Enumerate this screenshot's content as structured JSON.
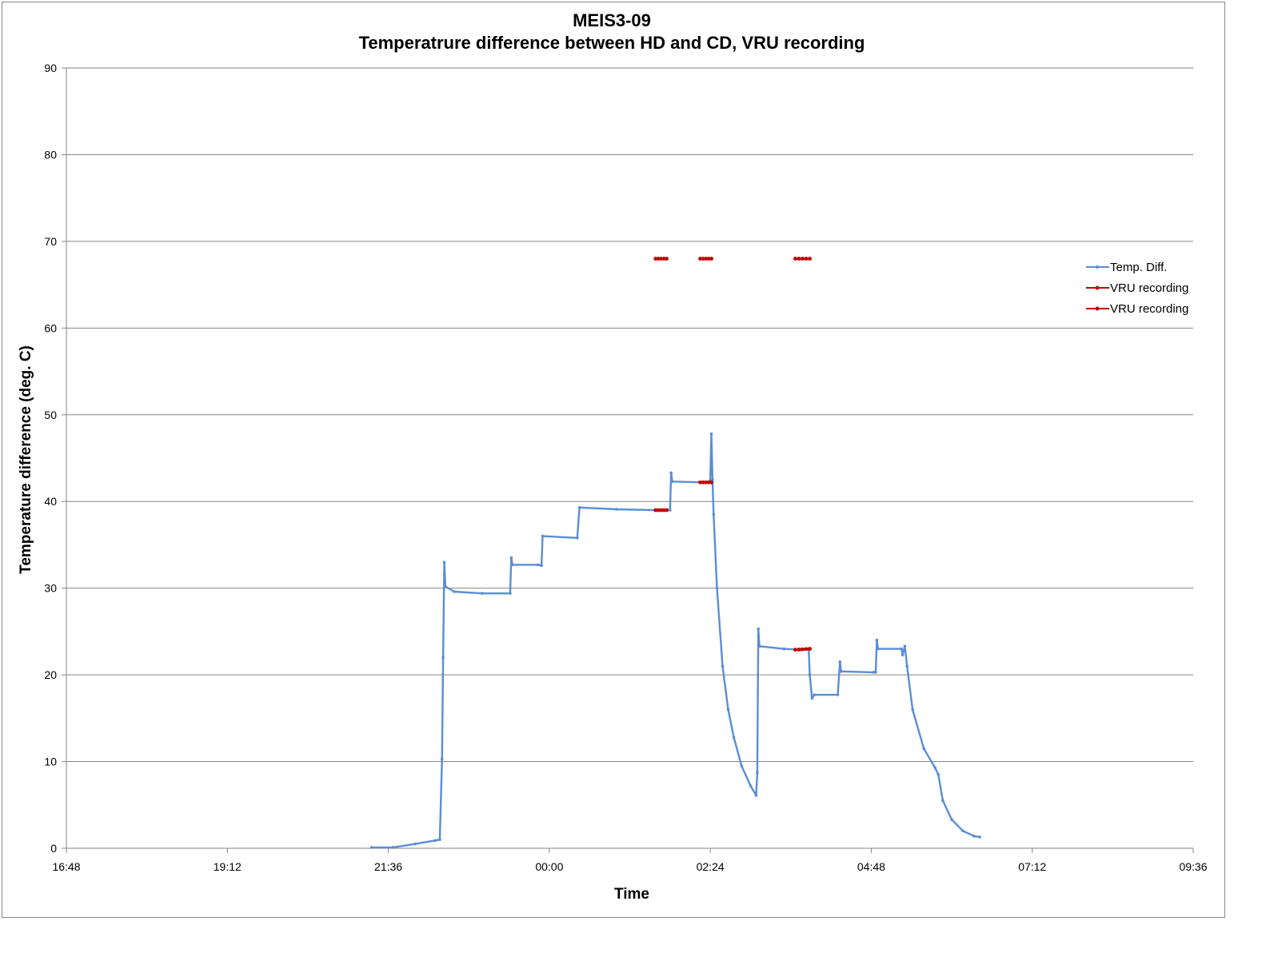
{
  "colors": {
    "temp": "#5B8DD6",
    "vru": "#C00000",
    "grid": "#868686",
    "axis": "#868686"
  },
  "chart_data": {
    "type": "line",
    "title": "MEIS3-09",
    "subtitle": "Temperatrure difference between HD and CD, VRU recording",
    "xlabel": "Time",
    "ylabel": "Temperature difference (deg. C)",
    "xlim": [
      "16:48",
      "09:36"
    ],
    "ylim": [
      0,
      90
    ],
    "x_tick_labels": [
      "16:48",
      "19:12",
      "21:36",
      "00:00",
      "02:24",
      "04:48",
      "07:12",
      "09:36"
    ],
    "y_tick_labels": [
      "0",
      "10",
      "20",
      "30",
      "40",
      "50",
      "60",
      "70",
      "80",
      "90"
    ],
    "grid": true,
    "legend_position": "right",
    "legend_entries": [
      "Temp. Diff.",
      "VRU recording",
      "VRU recording"
    ],
    "series": [
      {
        "name": "Temp. Diff.",
        "color": "#5B8DD6",
        "points": [
          [
            "21:21",
            0.1
          ],
          [
            "21:40",
            0.1
          ],
          [
            "22:00",
            0.5
          ],
          [
            "22:18",
            0.9
          ],
          [
            "22:22",
            1.0
          ],
          [
            "22:24",
            10.3
          ],
          [
            "22:25",
            22.0
          ],
          [
            "22:26",
            33.0
          ],
          [
            "22:27",
            30.2
          ],
          [
            "22:35",
            29.6
          ],
          [
            "23:00",
            29.4
          ],
          [
            "23:25",
            29.4
          ],
          [
            "23:26",
            33.5
          ],
          [
            "23:27",
            32.7
          ],
          [
            "23:50",
            32.7
          ],
          [
            "23:53",
            32.6
          ],
          [
            "23:54",
            36.0
          ],
          [
            "24:25",
            35.8
          ],
          [
            "24:27",
            39.3
          ],
          [
            "25:00",
            39.1
          ],
          [
            "25:35",
            39.0
          ],
          [
            "25:48",
            39.0
          ],
          [
            "25:49",
            43.3
          ],
          [
            "25:50",
            42.3
          ],
          [
            "26:20",
            42.2
          ],
          [
            "26:24",
            42.4
          ],
          [
            "26:25",
            47.8
          ],
          [
            "26:26",
            42.5
          ],
          [
            "26:27",
            38.5
          ],
          [
            "26:30",
            30.0
          ],
          [
            "26:35",
            21.0
          ],
          [
            "26:40",
            16.0
          ],
          [
            "26:45",
            12.8
          ],
          [
            "26:52",
            9.5
          ],
          [
            "27:00",
            7.2
          ],
          [
            "27:05",
            6.1
          ],
          [
            "27:06",
            8.7
          ],
          [
            "27:07",
            25.3
          ],
          [
            "27:08",
            23.3
          ],
          [
            "27:30",
            23.0
          ],
          [
            "27:45",
            22.9
          ],
          [
            "27:52",
            23.0
          ],
          [
            "27:53",
            20.0
          ],
          [
            "27:55",
            17.3
          ],
          [
            "27:57",
            17.7
          ],
          [
            "28:18",
            17.7
          ],
          [
            "28:20",
            21.5
          ],
          [
            "28:21",
            20.4
          ],
          [
            "28:50",
            20.3
          ],
          [
            "28:52",
            20.3
          ],
          [
            "28:53",
            24.0
          ],
          [
            "28:54",
            23.0
          ],
          [
            "29:15",
            23.0
          ],
          [
            "29:16",
            22.3
          ],
          [
            "29:18",
            23.3
          ],
          [
            "29:20",
            21.0
          ],
          [
            "29:25",
            16.0
          ],
          [
            "29:35",
            11.5
          ],
          [
            "29:45",
            9.3
          ],
          [
            "29:48",
            8.5
          ],
          [
            "29:52",
            5.5
          ],
          [
            "30:00",
            3.3
          ],
          [
            "30:10",
            2.0
          ],
          [
            "30:20",
            1.4
          ],
          [
            "30:25",
            1.3
          ]
        ]
      },
      {
        "name": "VRU recording",
        "color": "#C00000",
        "points": [
          [
            "25:35",
            39.0
          ],
          [
            "25:45",
            39.0
          ],
          [
            "26:15",
            42.2
          ],
          [
            "26:25",
            42.2
          ],
          [
            "27:40",
            22.9
          ],
          [
            "27:53",
            23.0
          ]
        ]
      },
      {
        "name": "VRU recording",
        "color": "#C00000",
        "points": [
          [
            "25:35",
            68
          ],
          [
            "25:45",
            68
          ],
          [
            "26:15",
            68
          ],
          [
            "26:25",
            68
          ],
          [
            "27:40",
            68
          ],
          [
            "27:53",
            68
          ]
        ]
      }
    ]
  }
}
